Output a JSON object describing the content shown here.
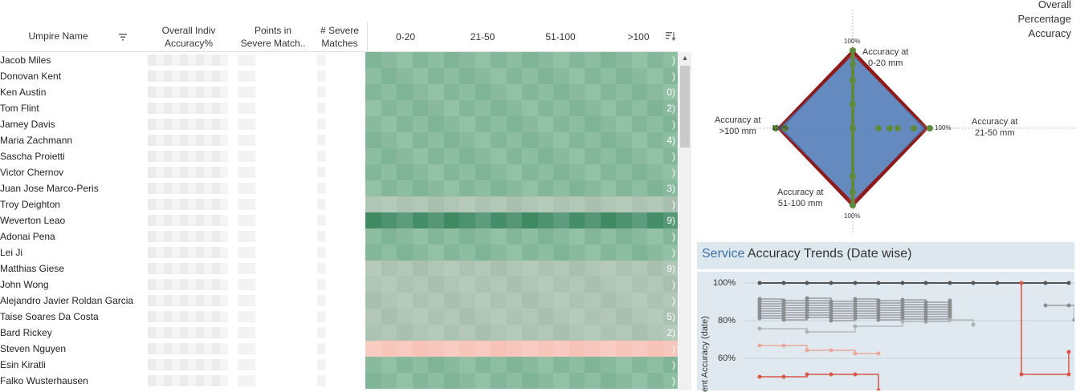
{
  "table": {
    "headers": {
      "umpire_name": "Umpire Name",
      "overall_line1": "Overall Indiv",
      "overall_line2": "Accuracy%",
      "points_line1": "Points in",
      "points_line2": "Severe Match..",
      "severe_line1": "# Severe",
      "severe_line2": "Matches",
      "b1": "0-20",
      "b2": "21-50",
      "b3": "51-100",
      "b4": ">100"
    },
    "rows": [
      {
        "name": "Jacob Miles",
        "suffix": ")"
      },
      {
        "name": "Donovan Kent",
        "suffix": ")"
      },
      {
        "name": "Ken Austin",
        "suffix": "0)"
      },
      {
        "name": "Tom Flint",
        "suffix": "2)"
      },
      {
        "name": "Jamey Davis",
        "suffix": ")"
      },
      {
        "name": "Maria Zachmann",
        "suffix": "4)"
      },
      {
        "name": "Sascha Proietti",
        "suffix": ")"
      },
      {
        "name": "Victor Chernov",
        "suffix": ")"
      },
      {
        "name": "Juan Jose Marco-Peris",
        "suffix": "3)"
      },
      {
        "name": "Troy Deighton",
        "suffix": ")"
      },
      {
        "name": "Weverton Leao",
        "suffix": "9)"
      },
      {
        "name": "Adonai Pena",
        "suffix": ")"
      },
      {
        "name": "Lei Ji",
        "suffix": ")"
      },
      {
        "name": "Matthias Giese",
        "suffix": "9)"
      },
      {
        "name": "John Wong",
        "suffix": ")"
      },
      {
        "name": "Alejandro Javier Roldan Garcia",
        "suffix": ")"
      },
      {
        "name": "Taise Soares Da Costa",
        "suffix": "5)"
      },
      {
        "name": "Bard Rickey",
        "suffix": "2)"
      },
      {
        "name": "Steven Nguyen",
        "suffix": ")"
      },
      {
        "name": "Esin Kiratli",
        "suffix": ")"
      },
      {
        "name": "Falko Wusterhausen",
        "suffix": ")"
      }
    ]
  },
  "radar": {
    "legend_line1": "Overall",
    "legend_line2": "Percentage",
    "legend_line3": "Accuracy",
    "top_line1": "Accuracy at",
    "top_line2": "0-20 mm",
    "right_line1": "Accuracy at",
    "right_line2": "21-50 mm",
    "bottom_line1": "Accuracy at",
    "bottom_line2": "51-100 mm",
    "left_line1": "Accuracy at",
    "left_line2": ">100 mm",
    "pct_top": "100%",
    "pct_right": "100%",
    "pct_bottom": "100%",
    "pct_left": "100%"
  },
  "trends": {
    "title_accent": "Service",
    "title_rest": " Accuracy Trends (Date wise)",
    "ylabel": "ent Accuracy (date)",
    "yticks": [
      "100%",
      "80%",
      "60%"
    ]
  },
  "colors": {
    "heat_green": "#7fb596",
    "heat_dark": "#3f8a63",
    "heat_grey": "#a9c0b0",
    "heat_pink": "#f7c3b8",
    "radar_fill": "#4a75b5",
    "radar_stroke": "#8e1c1c",
    "radar_dot": "#5f8a3c",
    "accent": "#3f6fa8"
  }
}
